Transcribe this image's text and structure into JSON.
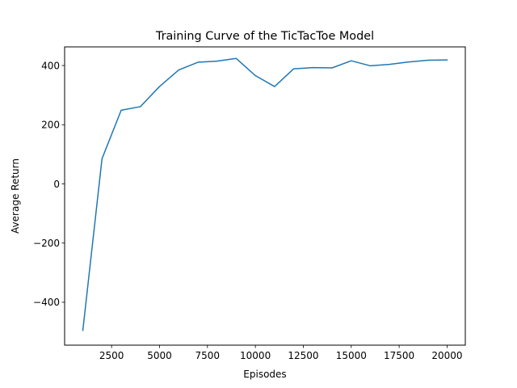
{
  "chart_data": {
    "type": "line",
    "title": "Training Curve of the TicTacToe Model",
    "xlabel": "Episodes",
    "ylabel": "Average Return",
    "xlim": [
      50,
      20950
    ],
    "ylim": [
      -545,
      463
    ],
    "x_ticks": [
      2500,
      5000,
      7500,
      10000,
      12500,
      15000,
      17500,
      20000
    ],
    "x_tick_labels": [
      "2500",
      "5000",
      "7500",
      "10000",
      "12500",
      "15000",
      "17500",
      "20000"
    ],
    "y_ticks": [
      -400,
      -200,
      0,
      200,
      400
    ],
    "y_tick_labels": [
      "−400",
      "−200",
      "0",
      "200",
      "400"
    ],
    "grid": false,
    "series": [
      {
        "color": "#1f77b4",
        "x": [
          1000,
          2000,
          3000,
          4000,
          5000,
          6000,
          7000,
          8000,
          9000,
          10000,
          11000,
          12000,
          13000,
          14000,
          15000,
          16000,
          17000,
          18000,
          19000,
          20000
        ],
        "y": [
          -495,
          85,
          249,
          261,
          329,
          385,
          411,
          415,
          424,
          366,
          329,
          389,
          393,
          392,
          416,
          399,
          404,
          412,
          418,
          419
        ]
      }
    ]
  }
}
